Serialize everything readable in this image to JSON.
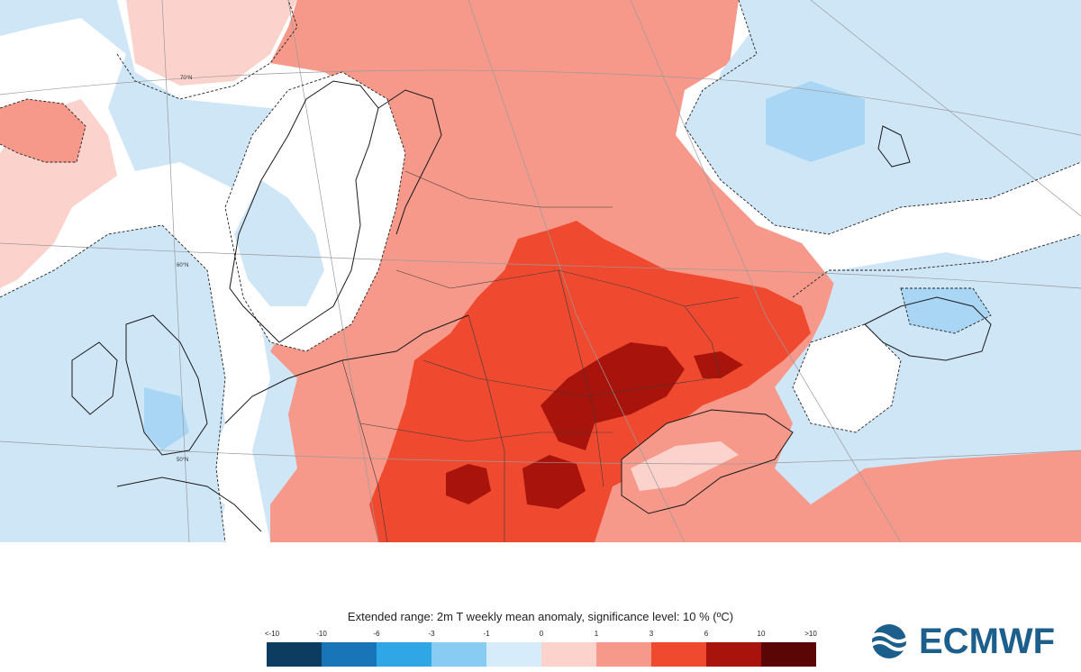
{
  "legend": {
    "title": "Extended range: 2m T weekly mean anomaly, significance level: 10 % (ºC)",
    "ticks": [
      "<-10",
      "-10",
      "-6",
      "-3",
      "-1",
      "0",
      "1",
      "3",
      "6",
      "10",
      ">10"
    ],
    "colors": [
      "#0c3c60",
      "#1876b8",
      "#2fa6e6",
      "#89ccf3",
      "#d6ecfa",
      "#fbd3cc",
      "#f6998a",
      "#ef4a30",
      "#a8140b",
      "#5b0606"
    ]
  },
  "map": {
    "latitude_labels": [
      "70°N",
      "60°N",
      "50°N"
    ],
    "colors": {
      "ocean_cold": "#cfe6f7",
      "cold_moderate": "#a9d6f5",
      "neutral": "#ffffff",
      "warm_light": "#fbd3cc",
      "warm_moderate": "#f6998a",
      "warm_strong": "#ef4a30",
      "warm_extreme": "#a8140b"
    }
  },
  "logo": {
    "text": "ECMWF",
    "color": "#1d5f8c"
  }
}
